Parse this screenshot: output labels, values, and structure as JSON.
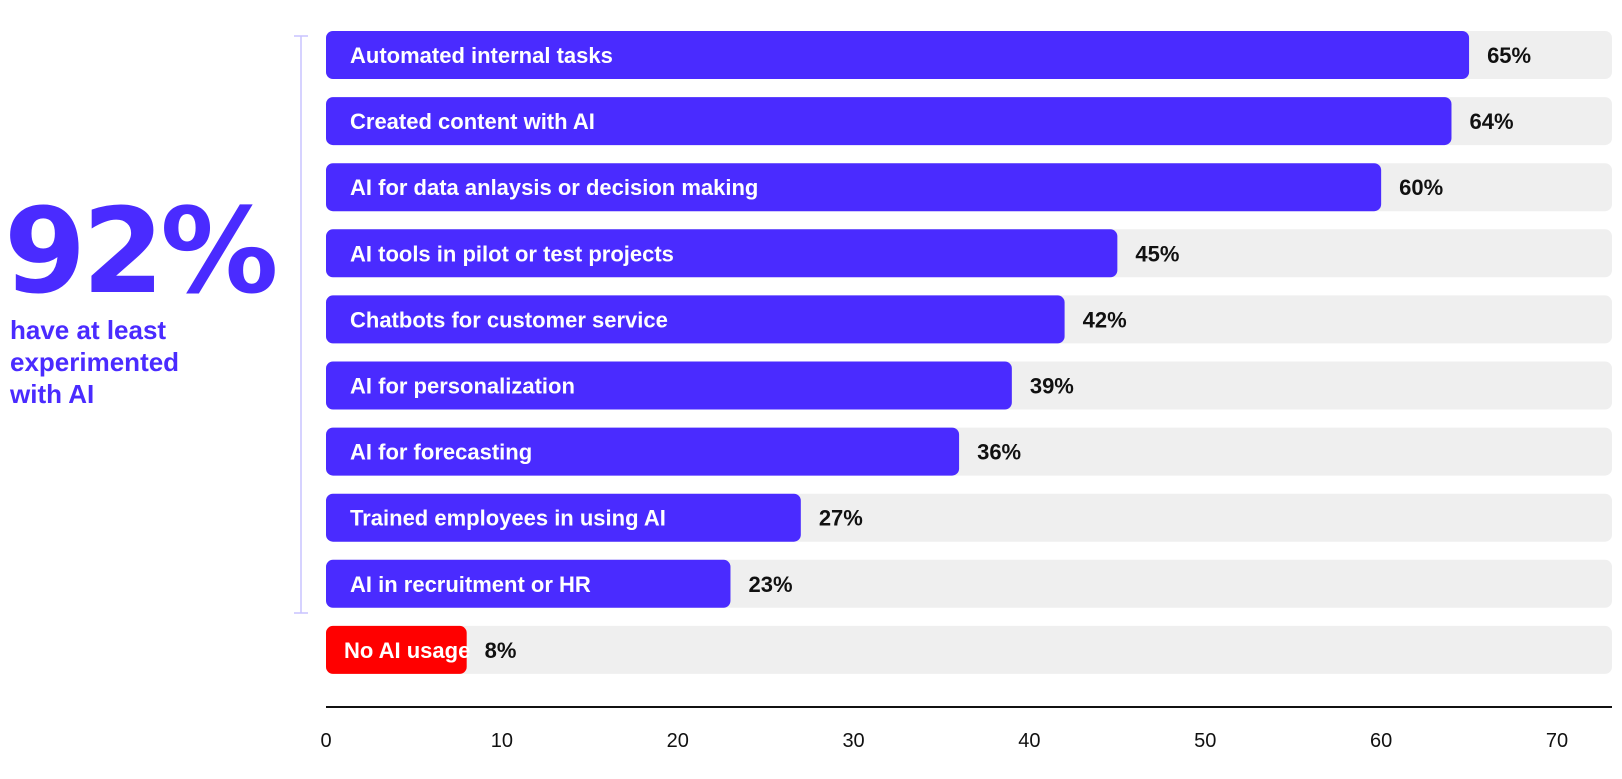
{
  "headline": {
    "stat": "92%",
    "caption_lines": [
      "have at least",
      "experimented",
      "with AI"
    ]
  },
  "chart_data": {
    "type": "bar",
    "orientation": "horizontal",
    "categories": [
      "Automated internal tasks",
      "Created content with AI",
      "AI for data anlaysis or decision making",
      "AI tools in pilot or test projects",
      "Chatbots for customer service",
      "AI for personalization",
      "AI for forecasting",
      "Trained employees in using AI",
      "AI in recruitment or HR",
      "No AI usage"
    ],
    "values": [
      65,
      64,
      60,
      45,
      42,
      39,
      36,
      27,
      23,
      8
    ],
    "value_labels": [
      "65%",
      "64%",
      "60%",
      "45%",
      "42%",
      "39%",
      "36%",
      "27%",
      "23%",
      "8%"
    ],
    "bar_colors": [
      "#4a2bff",
      "#4a2bff",
      "#4a2bff",
      "#4a2bff",
      "#4a2bff",
      "#4a2bff",
      "#4a2bff",
      "#4a2bff",
      "#4a2bff",
      "#ff0000"
    ],
    "track_color": "#efefef",
    "xlim": [
      0,
      75
    ],
    "xticks": [
      0,
      10,
      20,
      30,
      40,
      50,
      60,
      70
    ],
    "grid": false
  }
}
